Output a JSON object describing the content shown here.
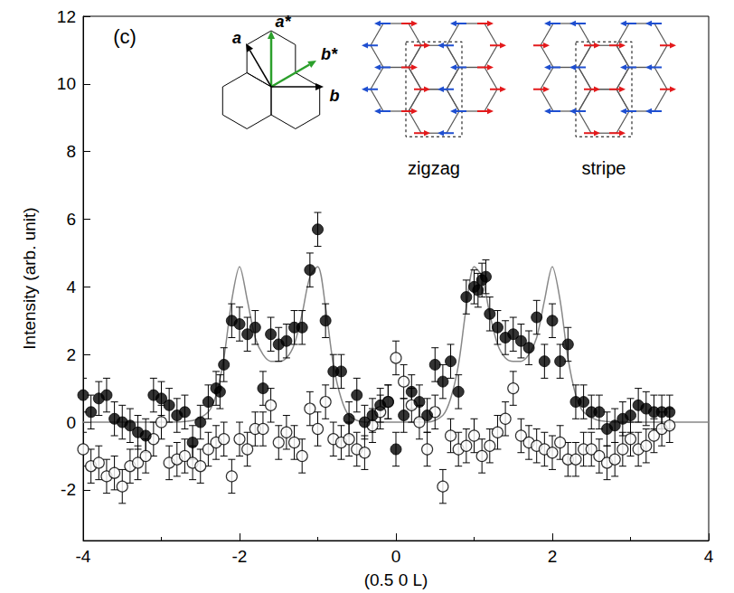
{
  "chart_data": {
    "type": "scatter",
    "panel_label": "(c)",
    "x_label": "(0.5 0 L)",
    "y_label": "Intensity (arb. unit)",
    "xlim": [
      -4,
      4
    ],
    "xticks": [
      -4,
      -2,
      0,
      2,
      4
    ],
    "ylim": [
      -3.5,
      12
    ],
    "yticks": [
      -2,
      0,
      2,
      4,
      6,
      8,
      10,
      12
    ],
    "grid": false,
    "inset": {
      "lattice_labels": [
        "a*",
        "b*",
        "a",
        "b"
      ],
      "structures": [
        "zigzag",
        "stripe"
      ]
    },
    "series": [
      {
        "type": "scatter",
        "marker": "filled_circle",
        "color": "#000000",
        "x": [
          -4.0,
          -3.9,
          -3.8,
          -3.7,
          -3.6,
          -3.5,
          -3.4,
          -3.3,
          -3.2,
          -3.1,
          -3.0,
          -2.9,
          -2.8,
          -2.7,
          -2.6,
          -2.5,
          -2.4,
          -2.3,
          -2.25,
          -2.2,
          -2.1,
          -2.0,
          -1.9,
          -1.8,
          -1.7,
          -1.6,
          -1.5,
          -1.4,
          -1.3,
          -1.2,
          -1.1,
          -1.0,
          -0.9,
          -0.8,
          -0.7,
          -0.6,
          -0.5,
          -0.4,
          -0.3,
          -0.2,
          -0.1,
          0.0,
          0.1,
          0.2,
          0.3,
          0.4,
          0.5,
          0.6,
          0.7,
          0.8,
          0.9,
          1.0,
          1.05,
          1.1,
          1.15,
          1.2,
          1.3,
          1.4,
          1.5,
          1.6,
          1.7,
          1.8,
          1.9,
          2.0,
          2.1,
          2.2,
          2.3,
          2.4,
          2.5,
          2.6,
          2.7,
          2.8,
          2.9,
          3.0,
          3.1,
          3.2,
          3.3,
          3.4,
          3.5
        ],
        "values": [
          0.8,
          0.3,
          0.7,
          0.8,
          0.1,
          0.0,
          -0.1,
          -0.3,
          -0.4,
          0.8,
          0.7,
          0.5,
          0.2,
          0.3,
          -0.6,
          0.0,
          0.6,
          1.0,
          0.9,
          1.7,
          3.0,
          2.9,
          2.6,
          2.8,
          1.0,
          2.6,
          2.3,
          2.4,
          2.8,
          2.8,
          4.5,
          5.7,
          3.0,
          1.5,
          1.5,
          0.1,
          0.8,
          0.0,
          0.2,
          0.5,
          0.6,
          -0.8,
          0.2,
          0.9,
          0.6,
          0.2,
          1.7,
          1.2,
          1.8,
          0.9,
          3.7,
          4.0,
          3.9,
          4.2,
          4.3,
          3.2,
          2.8,
          2.5,
          2.6,
          2.4,
          2.2,
          3.1,
          1.8,
          3.0,
          1.8,
          2.3,
          0.6,
          0.6,
          0.3,
          0.3,
          -0.2,
          -0.1,
          0.1,
          0.2,
          0.5,
          0.4,
          0.3,
          0.3,
          0.3
        ],
        "errors": [
          0.5,
          0.5,
          0.5,
          0.5,
          0.5,
          0.5,
          0.5,
          0.5,
          0.5,
          0.5,
          0.5,
          0.5,
          0.5,
          0.5,
          0.5,
          0.5,
          0.5,
          0.5,
          0.5,
          0.5,
          0.5,
          0.5,
          0.5,
          0.5,
          0.5,
          0.5,
          0.5,
          0.5,
          0.5,
          0.5,
          0.5,
          0.5,
          0.5,
          0.5,
          0.5,
          0.5,
          0.5,
          0.5,
          0.5,
          0.5,
          0.5,
          0.5,
          0.5,
          0.5,
          0.5,
          0.5,
          0.5,
          0.5,
          0.5,
          0.5,
          0.5,
          0.5,
          0.5,
          0.5,
          0.5,
          0.5,
          0.5,
          0.5,
          0.5,
          0.5,
          0.5,
          0.5,
          0.5,
          0.5,
          0.5,
          0.5,
          0.5,
          0.5,
          0.5,
          0.5,
          0.5,
          0.5,
          0.5,
          0.5,
          0.5,
          0.5,
          0.5,
          0.5,
          0.5
        ]
      },
      {
        "type": "scatter",
        "marker": "open_circle",
        "color": "#000000",
        "x": [
          -4.0,
          -3.9,
          -3.8,
          -3.7,
          -3.6,
          -3.5,
          -3.4,
          -3.3,
          -3.2,
          -3.1,
          -3.0,
          -2.9,
          -2.8,
          -2.7,
          -2.6,
          -2.5,
          -2.4,
          -2.3,
          -2.2,
          -2.1,
          -2.0,
          -1.9,
          -1.8,
          -1.7,
          -1.6,
          -1.5,
          -1.4,
          -1.3,
          -1.2,
          -1.1,
          -1.0,
          -0.9,
          -0.8,
          -0.7,
          -0.6,
          -0.5,
          -0.4,
          -0.3,
          -0.2,
          -0.1,
          0.0,
          0.1,
          0.2,
          0.3,
          0.4,
          0.5,
          0.6,
          0.7,
          0.8,
          0.9,
          1.0,
          1.1,
          1.2,
          1.3,
          1.4,
          1.5,
          1.6,
          1.7,
          1.8,
          1.9,
          2.0,
          2.1,
          2.2,
          2.3,
          2.4,
          2.5,
          2.6,
          2.7,
          2.8,
          2.9,
          3.0,
          3.1,
          3.2,
          3.3,
          3.4,
          3.5
        ],
        "values": [
          -0.8,
          -1.3,
          -1.2,
          -1.6,
          -1.5,
          -1.9,
          -1.3,
          -1.2,
          -1.0,
          -0.5,
          0.0,
          -1.2,
          -1.1,
          -1.0,
          -1.2,
          -1.3,
          -0.8,
          -0.6,
          -0.5,
          -1.6,
          -0.5,
          -0.8,
          -0.2,
          -0.2,
          0.5,
          -0.6,
          -0.3,
          -0.6,
          -1.0,
          0.4,
          -0.2,
          0.6,
          -0.5,
          -0.6,
          -0.5,
          -0.8,
          -0.9,
          -0.1,
          0.3,
          0.6,
          1.9,
          1.2,
          0.5,
          0.0,
          -0.8,
          0.3,
          -1.9,
          -0.4,
          -0.8,
          -0.7,
          -0.4,
          -1.0,
          -0.7,
          -0.3,
          0.1,
          1.0,
          -0.4,
          -0.6,
          -0.7,
          -0.8,
          -0.9,
          -0.6,
          -1.1,
          -1.1,
          -0.8,
          -0.8,
          -1.0,
          -1.2,
          -1.1,
          -0.8,
          -0.5,
          -0.8,
          -0.7,
          -0.4,
          -0.2,
          -0.1
        ],
        "errors": [
          0.5,
          0.5,
          0.5,
          0.5,
          0.5,
          0.5,
          0.5,
          0.5,
          0.5,
          0.5,
          0.5,
          0.5,
          0.5,
          0.5,
          0.5,
          0.5,
          0.5,
          0.5,
          0.5,
          0.5,
          0.5,
          0.5,
          0.5,
          0.5,
          0.5,
          0.5,
          0.5,
          0.5,
          0.5,
          0.5,
          0.5,
          0.5,
          0.5,
          0.5,
          0.5,
          0.5,
          0.5,
          0.5,
          0.5,
          0.5,
          0.5,
          0.5,
          0.5,
          0.5,
          0.5,
          0.5,
          0.5,
          0.5,
          0.5,
          0.5,
          0.5,
          0.5,
          0.5,
          0.5,
          0.5,
          0.5,
          0.5,
          0.5,
          0.5,
          0.5,
          0.5,
          0.5,
          0.5,
          0.5,
          0.5,
          0.5,
          0.5,
          0.5,
          0.5,
          0.5,
          0.5,
          0.5,
          0.5,
          0.5,
          0.5,
          0.5
        ]
      },
      {
        "type": "line",
        "line_style": "solid",
        "color": "#888888",
        "x": [
          -4.0,
          -3.0,
          -2.6,
          -2.4,
          -2.3,
          -2.2,
          -2.1,
          -2.0,
          -1.9,
          -1.8,
          -1.7,
          -1.6,
          -1.5,
          -1.4,
          -1.3,
          -1.2,
          -1.1,
          -1.0,
          -0.9,
          -0.8,
          -0.7,
          -0.6,
          -0.4,
          0.0,
          0.4,
          0.6,
          0.7,
          0.8,
          0.9,
          1.0,
          1.1,
          1.2,
          1.3,
          1.4,
          1.5,
          1.6,
          1.7,
          1.8,
          1.9,
          2.0,
          2.1,
          2.2,
          2.3,
          2.4,
          2.6,
          3.0,
          4.0
        ],
        "values": [
          0.0,
          0.0,
          0.05,
          0.3,
          0.8,
          1.9,
          3.6,
          4.6,
          3.6,
          2.5,
          2.0,
          1.8,
          1.8,
          1.9,
          2.3,
          3.2,
          4.3,
          4.6,
          3.4,
          1.7,
          0.7,
          0.2,
          0.0,
          0.0,
          0.0,
          0.2,
          0.7,
          1.7,
          3.4,
          4.6,
          4.3,
          3.2,
          2.3,
          1.9,
          1.8,
          1.8,
          2.0,
          2.5,
          3.6,
          4.6,
          3.6,
          1.9,
          0.8,
          0.3,
          0.05,
          0.0,
          0.0
        ]
      }
    ]
  }
}
